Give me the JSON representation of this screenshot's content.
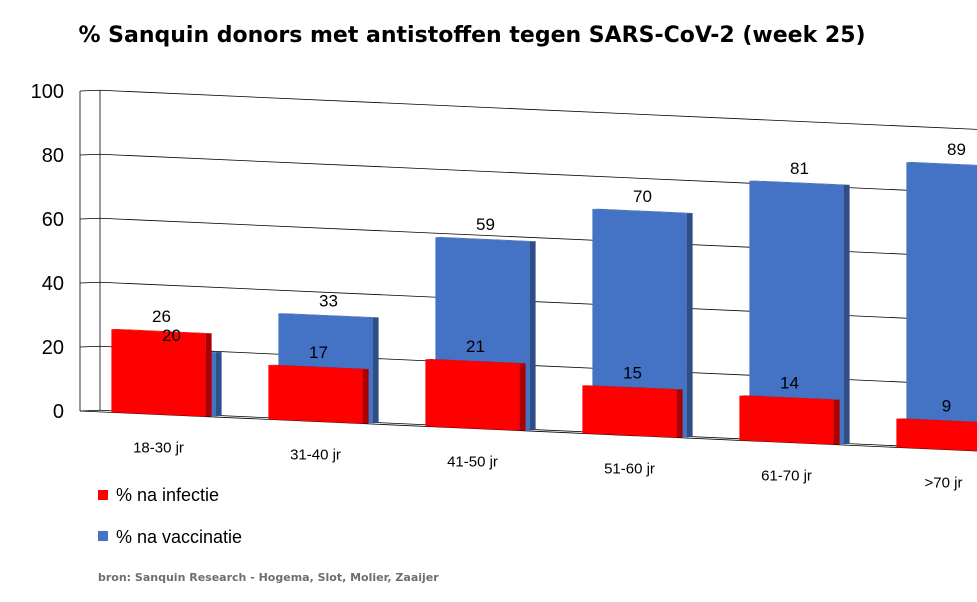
{
  "chart_data": {
    "type": "bar",
    "title": "% Sanquin donors met antistoffen tegen SARS-CoV-2 (week 25)",
    "categories": [
      "18-30 jr",
      "31-40 jr",
      "41-50 jr",
      "51-60 jr",
      "61-70 jr",
      ">70 jr"
    ],
    "series": [
      {
        "name": "% na infectie",
        "color": "#ff0000",
        "values": [
          26,
          17,
          21,
          15,
          14,
          9
        ]
      },
      {
        "name": "% na vaccinatie",
        "color": "#4472c4",
        "values": [
          20,
          33,
          59,
          70,
          81,
          89
        ]
      }
    ],
    "yticks": [
      0,
      20,
      40,
      60,
      80,
      100
    ],
    "ylim": [
      0,
      100
    ],
    "grid": true,
    "legend": "bottom-left",
    "xlabel": "",
    "ylabel": ""
  },
  "source": "bron: Sanquin Research - Hogema, Slot, Molier, Zaaijer"
}
